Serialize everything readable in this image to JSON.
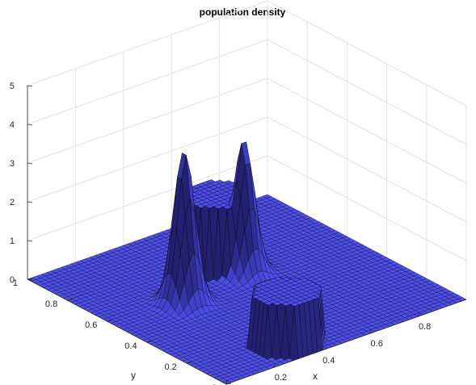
{
  "chart_data": {
    "type": "surface",
    "title": "population density",
    "xlabel": "x",
    "ylabel": "y",
    "zlabel": "",
    "xlim": [
      0,
      1
    ],
    "ylim": [
      0,
      1
    ],
    "zlim": [
      0,
      5
    ],
    "x_ticks": [
      "0",
      "0.2",
      "0.4",
      "0.6",
      "0.8"
    ],
    "y_ticks": [
      "0",
      "0.2",
      "0.4",
      "0.6",
      "0.8",
      "1"
    ],
    "z_ticks": [
      "0",
      "1",
      "2",
      "3",
      "4",
      "5"
    ],
    "grid": true,
    "colors": {
      "surface_face": "#3c3ca8",
      "surface_edge": "#000000",
      "grid": "#e3e3e3"
    },
    "grid_resolution": 50,
    "features": [
      {
        "kind": "gaussian-peak",
        "x": 0.28,
        "y": 0.55,
        "height": 4.0
      },
      {
        "kind": "gaussian-peak",
        "x": 0.57,
        "y": 0.6,
        "height": 3.5
      },
      {
        "kind": "plateau",
        "x": 0.55,
        "y": 0.7,
        "height": 1.8
      },
      {
        "kind": "plateau",
        "x": 0.35,
        "y": 0.12,
        "height": 1.3
      }
    ]
  }
}
